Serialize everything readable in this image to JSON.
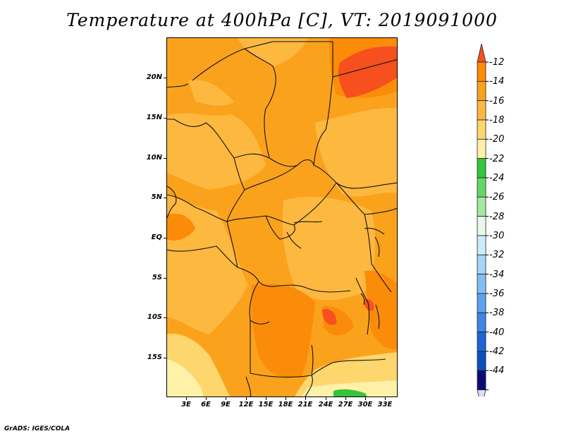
{
  "title": "Temperature at 400hPa [C], VT: 2019091000",
  "credit": "GrADS: IGES/COLA",
  "axes": {
    "lat_labels": [
      "20N",
      "15N",
      "10N",
      "5N",
      "EQ",
      "5S",
      "10S",
      "15S"
    ],
    "lon_labels": [
      "3E",
      "6E",
      "9E",
      "12E",
      "15E",
      "18E",
      "21E",
      "24E",
      "27E",
      "30E",
      "33E"
    ]
  },
  "legend": {
    "labels": [
      "-12",
      "-14",
      "-16",
      "-18",
      "-20",
      "-22",
      "-24",
      "-26",
      "-28",
      "-30",
      "-32",
      "-34",
      "-36",
      "-38",
      "-40",
      "-42",
      "-44"
    ],
    "colors": [
      "#f5501e",
      "#fa8c0a",
      "#fba21c",
      "#fdb840",
      "#fed66e",
      "#fff1a8",
      "#36c43c",
      "#64d864",
      "#a5e8a0",
      "#e6fae6",
      "#c9eefa",
      "#a3d7f7",
      "#82c0f4",
      "#5ba3ef",
      "#3c86e6",
      "#1e64d2",
      "#0c50be",
      "#0c0a78",
      "#dcdcf5"
    ]
  },
  "colors": {
    "base": "#fba21c",
    "darker": "#fa8c0a",
    "darkest": "#f5501e",
    "lighter": "#fdb840",
    "light": "#fed66e",
    "pale": "#fff1a8",
    "green": "#36c43c"
  }
}
